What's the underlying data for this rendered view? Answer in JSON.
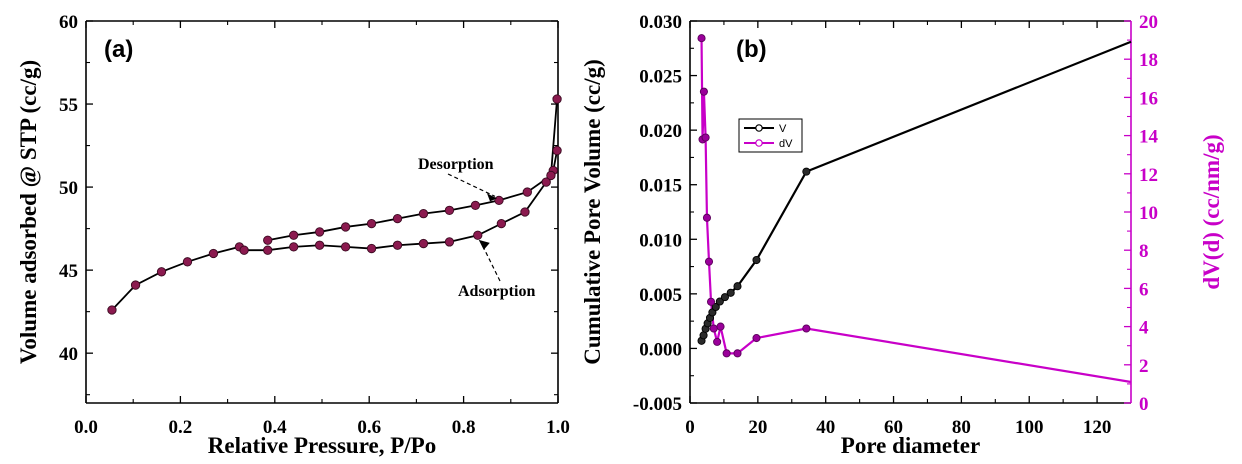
{
  "chart_data": [
    {
      "type": "line",
      "panel_label": "(a)",
      "xlabel": "Relative Pressure, P/Po",
      "ylabel": "Volume adsorbed @ STP (cc/g)",
      "xlim": [
        0.0,
        1.0
      ],
      "ylim": [
        37,
        60
      ],
      "xticks": [
        0.0,
        0.2,
        0.4,
        0.6,
        0.8,
        1.0
      ],
      "xtick_labels": [
        "0.0",
        "0.2",
        "0.4",
        "0.6",
        "0.8",
        "1.0"
      ],
      "yticks": [
        40,
        45,
        50,
        55,
        60
      ],
      "ytick_labels": [
        "40",
        "45",
        "50",
        "55",
        "60"
      ],
      "grid": false,
      "marker_color": "#8b1a4f",
      "line_color": "#000000",
      "series": [
        {
          "name": "Adsorption",
          "x": [
            0.055,
            0.105,
            0.16,
            0.215,
            0.27,
            0.325,
            0.335,
            0.385,
            0.44,
            0.495,
            0.55,
            0.605,
            0.66,
            0.715,
            0.77,
            0.83,
            0.88,
            0.93,
            0.975,
            0.99,
            0.998
          ],
          "y": [
            42.6,
            44.1,
            44.9,
            45.5,
            46.0,
            46.4,
            46.2,
            46.2,
            46.4,
            46.5,
            46.4,
            46.3,
            46.5,
            46.6,
            46.7,
            47.1,
            47.8,
            48.5,
            50.3,
            51.0,
            52.2
          ]
        },
        {
          "name": "Desorption",
          "x": [
            0.998,
            0.985,
            0.935,
            0.875,
            0.825,
            0.77,
            0.715,
            0.66,
            0.605,
            0.55,
            0.495,
            0.44,
            0.385
          ],
          "y": [
            55.3,
            50.7,
            49.7,
            49.2,
            48.9,
            48.6,
            48.4,
            48.1,
            47.8,
            47.6,
            47.3,
            47.1,
            46.8
          ]
        }
      ],
      "annotations": [
        {
          "text": "Desorption",
          "point_to": [
            0.875,
            49.2
          ]
        },
        {
          "text": "Adsorption",
          "point_to": [
            0.83,
            47.0
          ]
        }
      ]
    },
    {
      "type": "line",
      "panel_label": "(b)",
      "xlabel": "Pore diameter",
      "ylabel": "Cumulative Pore Volume (cc/g)",
      "y2label": "dV(d) (cc/nm/g)",
      "xlim": [
        0,
        130
      ],
      "ylim": [
        -0.005,
        0.03
      ],
      "y2lim": [
        0,
        20
      ],
      "xticks": [
        0,
        20,
        40,
        60,
        80,
        100,
        120
      ],
      "xtick_labels": [
        "0",
        "20",
        "40",
        "60",
        "80",
        "100",
        "120"
      ],
      "yticks": [
        -0.005,
        0.0,
        0.005,
        0.01,
        0.015,
        0.02,
        0.025,
        0.03
      ],
      "ytick_labels": [
        "-0.005",
        "0.000",
        "0.005",
        "0.010",
        "0.015",
        "0.020",
        "0.025",
        "0.030"
      ],
      "y2ticks": [
        0,
        2,
        4,
        6,
        8,
        10,
        12,
        14,
        16,
        18,
        20
      ],
      "y2tick_labels": [
        "0",
        "2",
        "4",
        "6",
        "8",
        "10",
        "12",
        "14",
        "16",
        "18",
        "20"
      ],
      "grid": false,
      "legend_position": "upper-left",
      "series": [
        {
          "name": "V",
          "axis": "left",
          "color": "#000000",
          "x": [
            3.4,
            4.0,
            4.6,
            5.2,
            5.9,
            6.6,
            7.6,
            8.8,
            10.3,
            12.0,
            14.0,
            19.6,
            34.3,
            130.0
          ],
          "y": [
            0.0007,
            0.0012,
            0.0018,
            0.0023,
            0.0028,
            0.0033,
            0.0038,
            0.0043,
            0.0047,
            0.0051,
            0.0057,
            0.0081,
            0.0162,
            0.0281
          ]
        },
        {
          "name": "dV",
          "axis": "right",
          "color": "#c800c8",
          "x": [
            3.4,
            3.7,
            4.1,
            4.6,
            5.0,
            5.6,
            6.2,
            7.0,
            8.0,
            9.0,
            10.8,
            14.0,
            19.6,
            34.3,
            130.0
          ],
          "y": [
            19.1,
            13.8,
            16.3,
            13.9,
            9.7,
            7.4,
            5.3,
            3.9,
            3.2,
            4.0,
            2.6,
            2.6,
            3.4,
            3.9,
            1.1
          ]
        }
      ]
    }
  ]
}
